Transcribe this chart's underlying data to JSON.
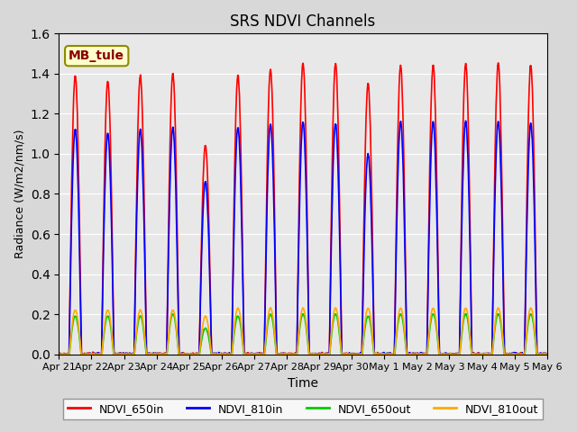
{
  "title": "SRS NDVI Channels",
  "xlabel": "Time",
  "ylabel": "Radiance (W/m2/nm/s)",
  "ylim": [
    0,
    1.6
  ],
  "annotation": "MB_tule",
  "legend_labels": [
    "NDVI_650in",
    "NDVI_810in",
    "NDVI_650out",
    "NDVI_810out"
  ],
  "colors": {
    "NDVI_650in": "#ff0000",
    "NDVI_810in": "#0000ff",
    "NDVI_650out": "#00cc00",
    "NDVI_810out": "#ffaa00"
  },
  "line_widths": {
    "NDVI_650in": 1.2,
    "NDVI_810in": 1.2,
    "NDVI_650out": 1.2,
    "NDVI_810out": 1.2
  },
  "xtick_labels": [
    "Apr 21",
    "Apr 22",
    "Apr 23",
    "Apr 24",
    "Apr 25",
    "Apr 26",
    "Apr 27",
    "Apr 28",
    "Apr 29",
    "Apr 30",
    "May 1",
    "May 2",
    "May 3",
    "May 4",
    "May 5",
    "May 6"
  ],
  "bg_color": "#e8e8e8",
  "axes_bg": "#f0f0f0"
}
